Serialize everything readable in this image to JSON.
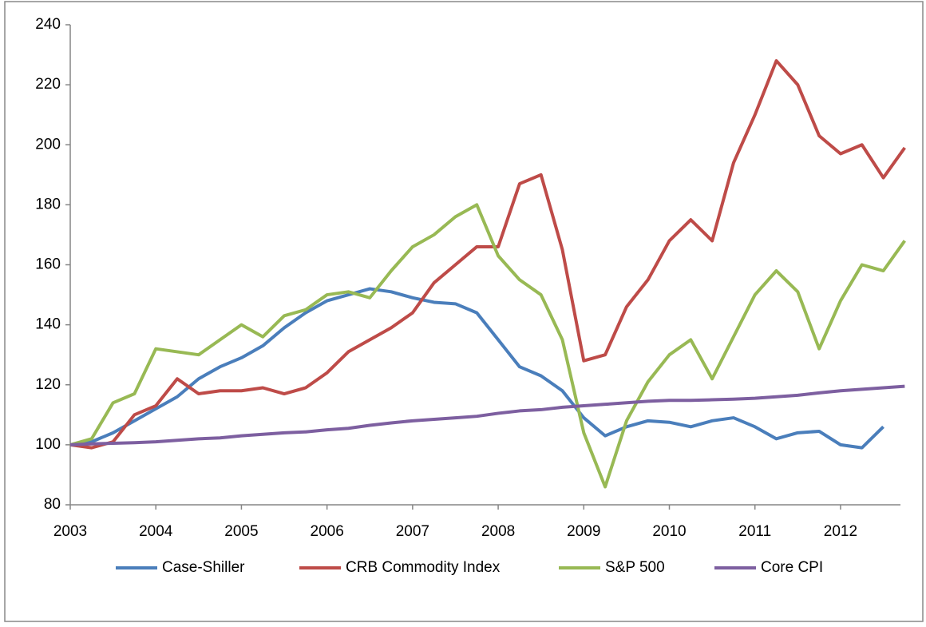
{
  "chart_data": {
    "type": "line",
    "x": [
      2003,
      2003.25,
      2003.5,
      2003.75,
      2004,
      2004.25,
      2004.5,
      2004.75,
      2005,
      2005.25,
      2005.5,
      2005.75,
      2006,
      2006.25,
      2006.5,
      2006.75,
      2007,
      2007.25,
      2007.5,
      2007.75,
      2008,
      2008.25,
      2008.5,
      2008.75,
      2009,
      2009.25,
      2009.5,
      2009.75,
      2010,
      2010.25,
      2010.5,
      2010.75,
      2011,
      2011.25,
      2011.5,
      2011.75,
      2012,
      2012.25,
      2012.5,
      2012.75
    ],
    "series": [
      {
        "name": "Case-Shiller",
        "color": "#4a7ebb",
        "values": [
          100,
          101,
          104,
          108,
          112,
          116,
          122,
          126,
          129,
          133,
          139,
          144,
          148,
          150,
          152,
          151,
          149,
          147.5,
          147,
          144,
          135,
          126,
          123,
          118,
          109,
          103,
          106,
          108,
          107.5,
          106,
          108,
          109,
          106,
          102,
          104,
          104.5,
          100,
          99,
          106,
          null
        ]
      },
      {
        "name": "CRB Commodity Index",
        "color": "#be4b48",
        "values": [
          100,
          99,
          101,
          110,
          113,
          122,
          117,
          118,
          118,
          119,
          117,
          119,
          124,
          131,
          135,
          139,
          144,
          154,
          160,
          166,
          166,
          187,
          190,
          165,
          128,
          130,
          146,
          155,
          168,
          175,
          168,
          194,
          210,
          228,
          220,
          203,
          197,
          200,
          189,
          199
        ]
      },
      {
        "name": "S&P 500",
        "color": "#98b954",
        "values": [
          100,
          102,
          114,
          117,
          132,
          131,
          130,
          135,
          140,
          136,
          143,
          145,
          150,
          151,
          149,
          158,
          166,
          170,
          176,
          180,
          163,
          155,
          150,
          135,
          104,
          86,
          108,
          121,
          130,
          135,
          122,
          136,
          150,
          158,
          151,
          132,
          148,
          160,
          158,
          168
        ]
      },
      {
        "name": "Core CPI",
        "color": "#7d5fa0",
        "values": [
          100,
          100.3,
          100.5,
          100.7,
          101,
          101.5,
          102,
          102.3,
          103,
          103.5,
          104,
          104.3,
          105,
          105.5,
          106.5,
          107.3,
          108,
          108.5,
          109,
          109.5,
          110.5,
          111.3,
          111.7,
          112.5,
          113,
          113.5,
          114,
          114.5,
          114.8,
          114.8,
          115,
          115.2,
          115.5,
          116,
          116.5,
          117.3,
          118,
          118.5,
          119,
          119.5
        ]
      }
    ],
    "xlim": [
      2003,
      2012.7
    ],
    "xticks": [
      2003,
      2004,
      2005,
      2006,
      2007,
      2008,
      2009,
      2010,
      2011,
      2012
    ],
    "ylim": [
      80,
      240
    ],
    "yticks": [
      80,
      100,
      120,
      140,
      160,
      180,
      200,
      220,
      240
    ],
    "legend": "bottom"
  }
}
